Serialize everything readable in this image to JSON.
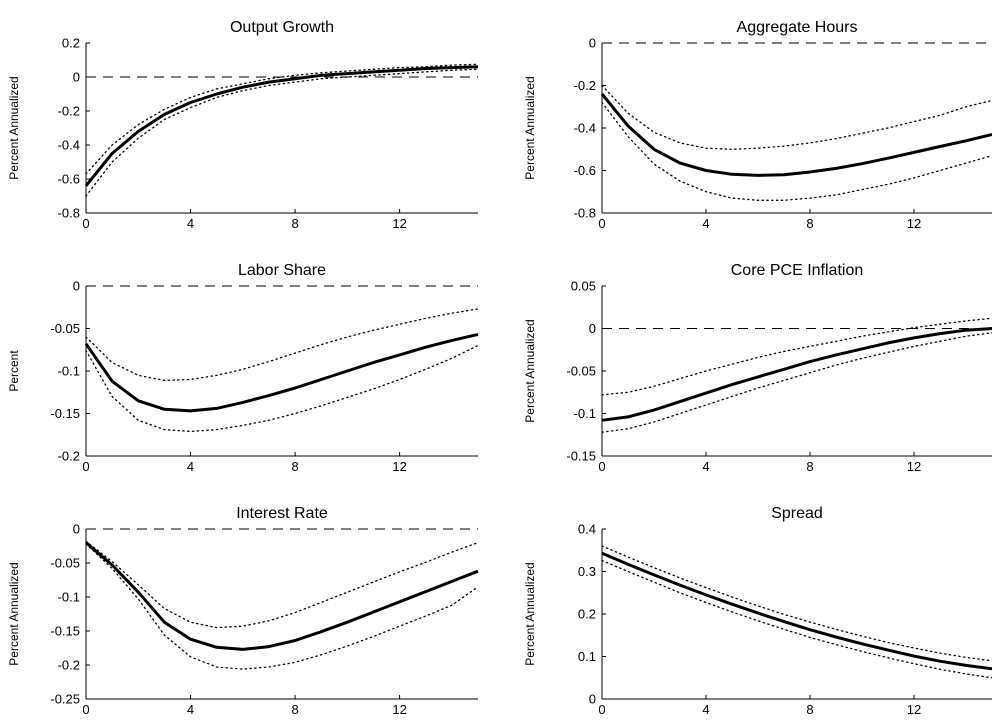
{
  "chart_data": [
    {
      "type": "line",
      "title": "Output Growth",
      "ylabel": "Percent Annualized",
      "xlim": [
        0,
        15
      ],
      "ylim": [
        -0.8,
        0.2
      ],
      "xticks": [
        "0",
        "4",
        "8",
        "12"
      ],
      "yticks": [
        "0.2",
        "0",
        "-0.2",
        "-0.4",
        "-0.6",
        "-0.8"
      ],
      "zero_line": 0,
      "x": [
        0,
        1,
        2,
        3,
        4,
        5,
        6,
        7,
        8,
        9,
        10,
        11,
        12,
        13,
        14,
        15
      ],
      "series": [
        {
          "role": "median",
          "style": "solid",
          "values": [
            -0.64,
            -0.45,
            -0.32,
            -0.22,
            -0.15,
            -0.1,
            -0.06,
            -0.03,
            -0.01,
            0.01,
            0.02,
            0.03,
            0.04,
            0.05,
            0.055,
            0.06
          ]
        },
        {
          "role": "upper",
          "style": "dotted",
          "values": [
            -0.57,
            -0.4,
            -0.28,
            -0.19,
            -0.12,
            -0.07,
            -0.04,
            -0.01,
            0.01,
            0.025,
            0.035,
            0.045,
            0.055,
            0.06,
            0.07,
            0.075
          ]
        },
        {
          "role": "lower",
          "style": "dotted",
          "values": [
            -0.7,
            -0.5,
            -0.36,
            -0.25,
            -0.18,
            -0.12,
            -0.08,
            -0.05,
            -0.03,
            -0.01,
            0.0,
            0.01,
            0.02,
            0.03,
            0.04,
            0.045
          ]
        }
      ]
    },
    {
      "type": "line",
      "title": "Aggregate Hours",
      "ylabel": "Percent Annualized",
      "xlim": [
        0,
        15
      ],
      "ylim": [
        -0.8,
        0
      ],
      "xticks": [
        "0",
        "4",
        "8",
        "12"
      ],
      "yticks": [
        "0",
        "-0.2",
        "-0.4",
        "-0.6",
        "-0.8"
      ],
      "zero_line": 0,
      "x": [
        0,
        1,
        2,
        3,
        4,
        5,
        6,
        7,
        8,
        9,
        10,
        11,
        12,
        13,
        14,
        15
      ],
      "series": [
        {
          "role": "median",
          "style": "solid",
          "values": [
            -0.24,
            -0.39,
            -0.5,
            -0.565,
            -0.6,
            -0.618,
            -0.623,
            -0.62,
            -0.607,
            -0.59,
            -0.568,
            -0.542,
            -0.515,
            -0.487,
            -0.46,
            -0.43
          ]
        },
        {
          "role": "upper",
          "style": "dotted",
          "values": [
            -0.2,
            -0.33,
            -0.42,
            -0.47,
            -0.495,
            -0.5,
            -0.495,
            -0.485,
            -0.47,
            -0.45,
            -0.425,
            -0.4,
            -0.37,
            -0.34,
            -0.3,
            -0.27
          ]
        },
        {
          "role": "lower",
          "style": "dotted",
          "values": [
            -0.28,
            -0.44,
            -0.57,
            -0.65,
            -0.7,
            -0.73,
            -0.74,
            -0.74,
            -0.73,
            -0.715,
            -0.69,
            -0.665,
            -0.635,
            -0.6,
            -0.565,
            -0.53
          ]
        }
      ]
    },
    {
      "type": "line",
      "title": "Labor Share",
      "ylabel": "Percent",
      "xlim": [
        0,
        15
      ],
      "ylim": [
        -0.2,
        0
      ],
      "xticks": [
        "0",
        "4",
        "8",
        "12"
      ],
      "yticks": [
        "0",
        "-0.05",
        "-0.1",
        "-0.15",
        "-0.2"
      ],
      "zero_line": 0,
      "x": [
        0,
        1,
        2,
        3,
        4,
        5,
        6,
        7,
        8,
        9,
        10,
        11,
        12,
        13,
        14,
        15
      ],
      "series": [
        {
          "role": "median",
          "style": "solid",
          "values": [
            -0.068,
            -0.112,
            -0.135,
            -0.145,
            -0.147,
            -0.144,
            -0.137,
            -0.129,
            -0.12,
            -0.11,
            -0.1,
            -0.09,
            -0.081,
            -0.072,
            -0.064,
            -0.057
          ]
        },
        {
          "role": "upper",
          "style": "dotted",
          "values": [
            -0.06,
            -0.09,
            -0.105,
            -0.111,
            -0.11,
            -0.105,
            -0.098,
            -0.089,
            -0.079,
            -0.069,
            -0.06,
            -0.052,
            -0.045,
            -0.038,
            -0.032,
            -0.027
          ]
        },
        {
          "role": "lower",
          "style": "dotted",
          "values": [
            -0.076,
            -0.13,
            -0.158,
            -0.169,
            -0.171,
            -0.169,
            -0.164,
            -0.158,
            -0.15,
            -0.141,
            -0.131,
            -0.121,
            -0.11,
            -0.098,
            -0.085,
            -0.07
          ]
        }
      ]
    },
    {
      "type": "line",
      "title": "Core PCE Inflation",
      "ylabel": "Percent Annualized",
      "xlim": [
        0,
        15
      ],
      "ylim": [
        -0.15,
        0.05
      ],
      "xticks": [
        "0",
        "4",
        "8",
        "12"
      ],
      "yticks": [
        "0.05",
        "0",
        "-0.05",
        "-0.1",
        "-0.15"
      ],
      "zero_line": 0,
      "x": [
        0,
        1,
        2,
        3,
        4,
        5,
        6,
        7,
        8,
        9,
        10,
        11,
        12,
        13,
        14,
        15
      ],
      "series": [
        {
          "role": "median",
          "style": "solid",
          "values": [
            -0.108,
            -0.104,
            -0.096,
            -0.086,
            -0.076,
            -0.066,
            -0.057,
            -0.048,
            -0.039,
            -0.031,
            -0.024,
            -0.017,
            -0.011,
            -0.006,
            -0.002,
            0.0
          ]
        },
        {
          "role": "upper",
          "style": "dotted",
          "values": [
            -0.078,
            -0.075,
            -0.068,
            -0.059,
            -0.05,
            -0.042,
            -0.034,
            -0.027,
            -0.021,
            -0.015,
            -0.009,
            -0.004,
            0.001,
            0.005,
            0.009,
            0.012
          ]
        },
        {
          "role": "lower",
          "style": "dotted",
          "values": [
            -0.122,
            -0.118,
            -0.11,
            -0.1,
            -0.09,
            -0.08,
            -0.07,
            -0.061,
            -0.052,
            -0.043,
            -0.035,
            -0.028,
            -0.021,
            -0.015,
            -0.009,
            -0.005
          ]
        }
      ]
    },
    {
      "type": "line",
      "title": "Interest Rate",
      "ylabel": "Percent Annualized",
      "xlim": [
        0,
        15
      ],
      "ylim": [
        -0.25,
        0
      ],
      "xticks": [
        "0",
        "4",
        "8",
        "12"
      ],
      "yticks": [
        "0",
        "-0.05",
        "-0.1",
        "-0.15",
        "-0.2",
        "-0.25"
      ],
      "zero_line": 0,
      "x": [
        0,
        1,
        2,
        3,
        4,
        5,
        6,
        7,
        8,
        9,
        10,
        11,
        12,
        13,
        14,
        15
      ],
      "series": [
        {
          "role": "median",
          "style": "solid",
          "values": [
            -0.02,
            -0.053,
            -0.093,
            -0.137,
            -0.162,
            -0.174,
            -0.177,
            -0.173,
            -0.164,
            -0.151,
            -0.137,
            -0.122,
            -0.107,
            -0.092,
            -0.077,
            -0.062
          ]
        },
        {
          "role": "upper",
          "style": "dotted",
          "values": [
            -0.018,
            -0.048,
            -0.082,
            -0.117,
            -0.137,
            -0.145,
            -0.143,
            -0.135,
            -0.123,
            -0.108,
            -0.093,
            -0.078,
            -0.063,
            -0.049,
            -0.034,
            -0.02
          ]
        },
        {
          "role": "lower",
          "style": "dotted",
          "values": [
            -0.022,
            -0.058,
            -0.103,
            -0.156,
            -0.188,
            -0.203,
            -0.206,
            -0.203,
            -0.196,
            -0.185,
            -0.172,
            -0.158,
            -0.143,
            -0.128,
            -0.112,
            -0.085
          ]
        }
      ]
    },
    {
      "type": "line",
      "title": "Spread",
      "ylabel": "Percent Annualized",
      "xlim": [
        0,
        15
      ],
      "ylim": [
        0,
        0.4
      ],
      "xticks": [
        "0",
        "4",
        "8",
        "12"
      ],
      "yticks": [
        "0.4",
        "0.3",
        "0.2",
        "0.1",
        "0"
      ],
      "zero_line": 0,
      "x": [
        0,
        1,
        2,
        3,
        4,
        5,
        6,
        7,
        8,
        9,
        10,
        11,
        12,
        13,
        14,
        15
      ],
      "series": [
        {
          "role": "median",
          "style": "solid",
          "values": [
            0.343,
            0.317,
            0.292,
            0.268,
            0.245,
            0.223,
            0.202,
            0.182,
            0.163,
            0.146,
            0.13,
            0.115,
            0.101,
            0.089,
            0.079,
            0.071
          ]
        },
        {
          "role": "upper",
          "style": "dotted",
          "values": [
            0.36,
            0.334,
            0.309,
            0.285,
            0.262,
            0.24,
            0.219,
            0.199,
            0.181,
            0.164,
            0.148,
            0.133,
            0.12,
            0.108,
            0.098,
            0.09
          ]
        },
        {
          "role": "lower",
          "style": "dotted",
          "values": [
            0.326,
            0.3,
            0.275,
            0.25,
            0.227,
            0.205,
            0.184,
            0.164,
            0.145,
            0.128,
            0.112,
            0.097,
            0.083,
            0.07,
            0.059,
            0.05
          ]
        }
      ]
    }
  ]
}
